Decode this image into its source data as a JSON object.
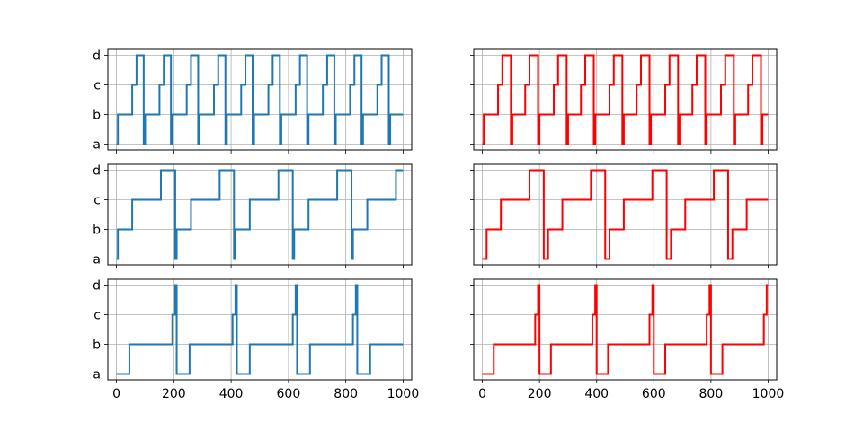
{
  "chart_data": {
    "type": "line",
    "layout": "3x2 grid of step-line subplots",
    "y_categories": [
      "a",
      "b",
      "c",
      "d"
    ],
    "x_ticks": [
      0,
      200,
      400,
      600,
      800,
      1000
    ],
    "xlim": [
      -30,
      1030
    ],
    "grid": true,
    "colors": {
      "left": "#1f77b4",
      "right": "#ff0000"
    },
    "panels": [
      {
        "id": "row1-left",
        "row": 1,
        "col": 1,
        "color": "#1f77b4",
        "points": [
          [
            0,
            "a"
          ],
          [
            5,
            "a"
          ],
          [
            5,
            "b"
          ],
          [
            55,
            "b"
          ],
          [
            55,
            "c"
          ],
          [
            70,
            "c"
          ],
          [
            70,
            "d"
          ],
          [
            95,
            "d"
          ],
          [
            95,
            "a"
          ],
          [
            100,
            "a"
          ],
          [
            100,
            "b"
          ],
          [
            150,
            "b"
          ],
          [
            150,
            "c"
          ],
          [
            165,
            "c"
          ],
          [
            165,
            "d"
          ],
          [
            190,
            "d"
          ],
          [
            190,
            "a"
          ],
          [
            195,
            "a"
          ],
          [
            195,
            "b"
          ],
          [
            245,
            "b"
          ],
          [
            245,
            "c"
          ],
          [
            260,
            "c"
          ],
          [
            260,
            "d"
          ],
          [
            285,
            "d"
          ],
          [
            285,
            "a"
          ],
          [
            290,
            "a"
          ],
          [
            290,
            "b"
          ],
          [
            340,
            "b"
          ],
          [
            340,
            "c"
          ],
          [
            355,
            "c"
          ],
          [
            355,
            "d"
          ],
          [
            380,
            "d"
          ],
          [
            380,
            "a"
          ],
          [
            385,
            "a"
          ],
          [
            385,
            "b"
          ],
          [
            435,
            "b"
          ],
          [
            435,
            "c"
          ],
          [
            450,
            "c"
          ],
          [
            450,
            "d"
          ],
          [
            475,
            "d"
          ],
          [
            475,
            "a"
          ],
          [
            480,
            "a"
          ],
          [
            480,
            "b"
          ],
          [
            530,
            "b"
          ],
          [
            530,
            "c"
          ],
          [
            545,
            "c"
          ],
          [
            545,
            "d"
          ],
          [
            570,
            "d"
          ],
          [
            570,
            "a"
          ],
          [
            575,
            "a"
          ],
          [
            575,
            "b"
          ],
          [
            625,
            "b"
          ],
          [
            625,
            "c"
          ],
          [
            640,
            "c"
          ],
          [
            640,
            "d"
          ],
          [
            665,
            "d"
          ],
          [
            665,
            "a"
          ],
          [
            670,
            "a"
          ],
          [
            670,
            "b"
          ],
          [
            720,
            "b"
          ],
          [
            720,
            "c"
          ],
          [
            735,
            "c"
          ],
          [
            735,
            "d"
          ],
          [
            760,
            "d"
          ],
          [
            760,
            "a"
          ],
          [
            765,
            "a"
          ],
          [
            765,
            "b"
          ],
          [
            815,
            "b"
          ],
          [
            815,
            "c"
          ],
          [
            830,
            "c"
          ],
          [
            830,
            "d"
          ],
          [
            855,
            "d"
          ],
          [
            855,
            "a"
          ],
          [
            860,
            "a"
          ],
          [
            860,
            "b"
          ],
          [
            910,
            "b"
          ],
          [
            910,
            "c"
          ],
          [
            925,
            "c"
          ],
          [
            925,
            "d"
          ],
          [
            950,
            "d"
          ],
          [
            950,
            "a"
          ],
          [
            955,
            "a"
          ],
          [
            955,
            "b"
          ],
          [
            1000,
            "b"
          ]
        ]
      },
      {
        "id": "row1-right",
        "row": 1,
        "col": 2,
        "color": "#ff0000",
        "points": [
          [
            0,
            "a"
          ],
          [
            5,
            "a"
          ],
          [
            5,
            "b"
          ],
          [
            55,
            "b"
          ],
          [
            55,
            "c"
          ],
          [
            70,
            "c"
          ],
          [
            70,
            "d"
          ],
          [
            100,
            "d"
          ],
          [
            100,
            "a"
          ],
          [
            105,
            "a"
          ],
          [
            105,
            "b"
          ],
          [
            150,
            "b"
          ],
          [
            150,
            "c"
          ],
          [
            165,
            "c"
          ],
          [
            165,
            "d"
          ],
          [
            195,
            "d"
          ],
          [
            195,
            "a"
          ],
          [
            200,
            "a"
          ],
          [
            200,
            "b"
          ],
          [
            250,
            "b"
          ],
          [
            250,
            "c"
          ],
          [
            265,
            "c"
          ],
          [
            265,
            "d"
          ],
          [
            295,
            "d"
          ],
          [
            295,
            "a"
          ],
          [
            300,
            "a"
          ],
          [
            300,
            "b"
          ],
          [
            345,
            "b"
          ],
          [
            345,
            "c"
          ],
          [
            360,
            "c"
          ],
          [
            360,
            "d"
          ],
          [
            390,
            "d"
          ],
          [
            390,
            "a"
          ],
          [
            395,
            "a"
          ],
          [
            395,
            "b"
          ],
          [
            445,
            "b"
          ],
          [
            445,
            "c"
          ],
          [
            460,
            "c"
          ],
          [
            460,
            "d"
          ],
          [
            490,
            "d"
          ],
          [
            490,
            "a"
          ],
          [
            495,
            "a"
          ],
          [
            495,
            "b"
          ],
          [
            540,
            "b"
          ],
          [
            540,
            "c"
          ],
          [
            555,
            "c"
          ],
          [
            555,
            "d"
          ],
          [
            585,
            "d"
          ],
          [
            585,
            "a"
          ],
          [
            590,
            "a"
          ],
          [
            590,
            "b"
          ],
          [
            640,
            "b"
          ],
          [
            640,
            "c"
          ],
          [
            655,
            "c"
          ],
          [
            655,
            "d"
          ],
          [
            685,
            "d"
          ],
          [
            685,
            "a"
          ],
          [
            690,
            "a"
          ],
          [
            690,
            "b"
          ],
          [
            735,
            "b"
          ],
          [
            735,
            "c"
          ],
          [
            750,
            "c"
          ],
          [
            750,
            "d"
          ],
          [
            780,
            "d"
          ],
          [
            780,
            "a"
          ],
          [
            785,
            "a"
          ],
          [
            785,
            "b"
          ],
          [
            835,
            "b"
          ],
          [
            835,
            "c"
          ],
          [
            850,
            "c"
          ],
          [
            850,
            "d"
          ],
          [
            880,
            "d"
          ],
          [
            880,
            "a"
          ],
          [
            885,
            "a"
          ],
          [
            885,
            "b"
          ],
          [
            930,
            "b"
          ],
          [
            930,
            "c"
          ],
          [
            945,
            "c"
          ],
          [
            945,
            "d"
          ],
          [
            975,
            "d"
          ],
          [
            975,
            "a"
          ],
          [
            980,
            "a"
          ],
          [
            980,
            "b"
          ],
          [
            1000,
            "b"
          ]
        ]
      },
      {
        "id": "row2-left",
        "row": 2,
        "col": 1,
        "color": "#1f77b4",
        "points": [
          [
            0,
            "a"
          ],
          [
            5,
            "a"
          ],
          [
            5,
            "b"
          ],
          [
            55,
            "b"
          ],
          [
            55,
            "c"
          ],
          [
            155,
            "c"
          ],
          [
            155,
            "d"
          ],
          [
            205,
            "d"
          ],
          [
            205,
            "a"
          ],
          [
            210,
            "a"
          ],
          [
            210,
            "b"
          ],
          [
            260,
            "b"
          ],
          [
            260,
            "c"
          ],
          [
            360,
            "c"
          ],
          [
            360,
            "d"
          ],
          [
            410,
            "d"
          ],
          [
            410,
            "a"
          ],
          [
            415,
            "a"
          ],
          [
            415,
            "b"
          ],
          [
            465,
            "b"
          ],
          [
            465,
            "c"
          ],
          [
            565,
            "c"
          ],
          [
            565,
            "d"
          ],
          [
            615,
            "d"
          ],
          [
            615,
            "a"
          ],
          [
            620,
            "a"
          ],
          [
            620,
            "b"
          ],
          [
            670,
            "b"
          ],
          [
            670,
            "c"
          ],
          [
            770,
            "c"
          ],
          [
            770,
            "d"
          ],
          [
            820,
            "d"
          ],
          [
            820,
            "a"
          ],
          [
            825,
            "a"
          ],
          [
            825,
            "b"
          ],
          [
            875,
            "b"
          ],
          [
            875,
            "c"
          ],
          [
            975,
            "c"
          ],
          [
            975,
            "d"
          ],
          [
            1000,
            "d"
          ]
        ]
      },
      {
        "id": "row2-right",
        "row": 2,
        "col": 2,
        "color": "#ff0000",
        "points": [
          [
            0,
            "a"
          ],
          [
            15,
            "a"
          ],
          [
            15,
            "b"
          ],
          [
            65,
            "b"
          ],
          [
            65,
            "c"
          ],
          [
            165,
            "c"
          ],
          [
            165,
            "d"
          ],
          [
            215,
            "d"
          ],
          [
            215,
            "a"
          ],
          [
            230,
            "a"
          ],
          [
            230,
            "b"
          ],
          [
            280,
            "b"
          ],
          [
            280,
            "c"
          ],
          [
            380,
            "c"
          ],
          [
            380,
            "d"
          ],
          [
            430,
            "d"
          ],
          [
            430,
            "a"
          ],
          [
            445,
            "a"
          ],
          [
            445,
            "b"
          ],
          [
            495,
            "b"
          ],
          [
            495,
            "c"
          ],
          [
            595,
            "c"
          ],
          [
            595,
            "d"
          ],
          [
            645,
            "d"
          ],
          [
            645,
            "a"
          ],
          [
            660,
            "a"
          ],
          [
            660,
            "b"
          ],
          [
            710,
            "b"
          ],
          [
            710,
            "c"
          ],
          [
            810,
            "c"
          ],
          [
            810,
            "d"
          ],
          [
            860,
            "d"
          ],
          [
            860,
            "a"
          ],
          [
            875,
            "a"
          ],
          [
            875,
            "b"
          ],
          [
            925,
            "b"
          ],
          [
            925,
            "c"
          ],
          [
            1000,
            "c"
          ]
        ]
      },
      {
        "id": "row3-left",
        "row": 3,
        "col": 1,
        "color": "#1f77b4",
        "points": [
          [
            0,
            "a"
          ],
          [
            45,
            "a"
          ],
          [
            45,
            "b"
          ],
          [
            195,
            "b"
          ],
          [
            195,
            "c"
          ],
          [
            205,
            "c"
          ],
          [
            205,
            "d"
          ],
          [
            210,
            "d"
          ],
          [
            210,
            "a"
          ],
          [
            255,
            "a"
          ],
          [
            255,
            "b"
          ],
          [
            405,
            "b"
          ],
          [
            405,
            "c"
          ],
          [
            415,
            "c"
          ],
          [
            415,
            "d"
          ],
          [
            420,
            "d"
          ],
          [
            420,
            "a"
          ],
          [
            465,
            "a"
          ],
          [
            465,
            "b"
          ],
          [
            615,
            "b"
          ],
          [
            615,
            "c"
          ],
          [
            625,
            "c"
          ],
          [
            625,
            "d"
          ],
          [
            630,
            "d"
          ],
          [
            630,
            "a"
          ],
          [
            675,
            "a"
          ],
          [
            675,
            "b"
          ],
          [
            825,
            "b"
          ],
          [
            825,
            "c"
          ],
          [
            835,
            "c"
          ],
          [
            835,
            "d"
          ],
          [
            840,
            "d"
          ],
          [
            840,
            "a"
          ],
          [
            885,
            "a"
          ],
          [
            885,
            "b"
          ],
          [
            1000,
            "b"
          ]
        ]
      },
      {
        "id": "row3-right",
        "row": 3,
        "col": 2,
        "color": "#ff0000",
        "points": [
          [
            0,
            "a"
          ],
          [
            40,
            "a"
          ],
          [
            40,
            "b"
          ],
          [
            185,
            "b"
          ],
          [
            185,
            "c"
          ],
          [
            195,
            "c"
          ],
          [
            195,
            "d"
          ],
          [
            200,
            "d"
          ],
          [
            200,
            "a"
          ],
          [
            240,
            "a"
          ],
          [
            240,
            "b"
          ],
          [
            385,
            "b"
          ],
          [
            385,
            "c"
          ],
          [
            395,
            "c"
          ],
          [
            395,
            "d"
          ],
          [
            400,
            "d"
          ],
          [
            400,
            "a"
          ],
          [
            440,
            "a"
          ],
          [
            440,
            "b"
          ],
          [
            585,
            "b"
          ],
          [
            585,
            "c"
          ],
          [
            595,
            "c"
          ],
          [
            595,
            "d"
          ],
          [
            600,
            "d"
          ],
          [
            600,
            "a"
          ],
          [
            640,
            "a"
          ],
          [
            640,
            "b"
          ],
          [
            785,
            "b"
          ],
          [
            785,
            "c"
          ],
          [
            795,
            "c"
          ],
          [
            795,
            "d"
          ],
          [
            800,
            "d"
          ],
          [
            800,
            "a"
          ],
          [
            840,
            "a"
          ],
          [
            840,
            "b"
          ],
          [
            985,
            "b"
          ],
          [
            985,
            "c"
          ],
          [
            995,
            "c"
          ],
          [
            995,
            "d"
          ],
          [
            1000,
            "d"
          ]
        ]
      }
    ]
  }
}
